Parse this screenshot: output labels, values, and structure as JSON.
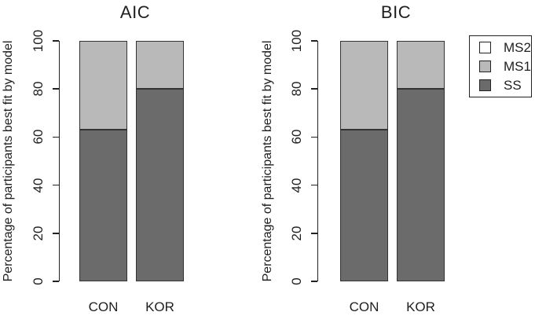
{
  "figure": {
    "background": "#ffffff",
    "ink_color": "#222222",
    "bar_border_color": "#333333"
  },
  "chart_data": [
    {
      "type": "bar",
      "stacked": true,
      "title": "AIC",
      "categories": [
        "CON",
        "KOR"
      ],
      "series": [
        {
          "name": "SS",
          "values": [
            63,
            80
          ],
          "color": "#6b6b6b"
        },
        {
          "name": "MS1",
          "values": [
            37,
            20
          ],
          "color": "#b9b9b9"
        },
        {
          "name": "MS2",
          "values": [
            0,
            0
          ],
          "color": "#ffffff"
        }
      ],
      "xlabel": "",
      "ylabel": "Percentage of participants best fit by model",
      "ylim": [
        0,
        100
      ],
      "yticks": [
        0,
        20,
        40,
        60,
        80,
        100
      ],
      "grid": false
    },
    {
      "type": "bar",
      "stacked": true,
      "title": "BIC",
      "categories": [
        "CON",
        "KOR"
      ],
      "series": [
        {
          "name": "SS",
          "values": [
            63,
            80
          ],
          "color": "#6b6b6b"
        },
        {
          "name": "MS1",
          "values": [
            37,
            20
          ],
          "color": "#b9b9b9"
        },
        {
          "name": "MS2",
          "values": [
            0,
            0
          ],
          "color": "#ffffff"
        }
      ],
      "xlabel": "",
      "ylabel": "Percentage of participants best fit by model",
      "ylim": [
        0,
        100
      ],
      "yticks": [
        0,
        20,
        40,
        60,
        80,
        100
      ],
      "grid": false
    }
  ],
  "legend": {
    "position": "top-right",
    "entries": [
      {
        "label": "MS2",
        "color": "#ffffff"
      },
      {
        "label": "MS1",
        "color": "#b9b9b9"
      },
      {
        "label": "SS",
        "color": "#6b6b6b"
      }
    ]
  }
}
